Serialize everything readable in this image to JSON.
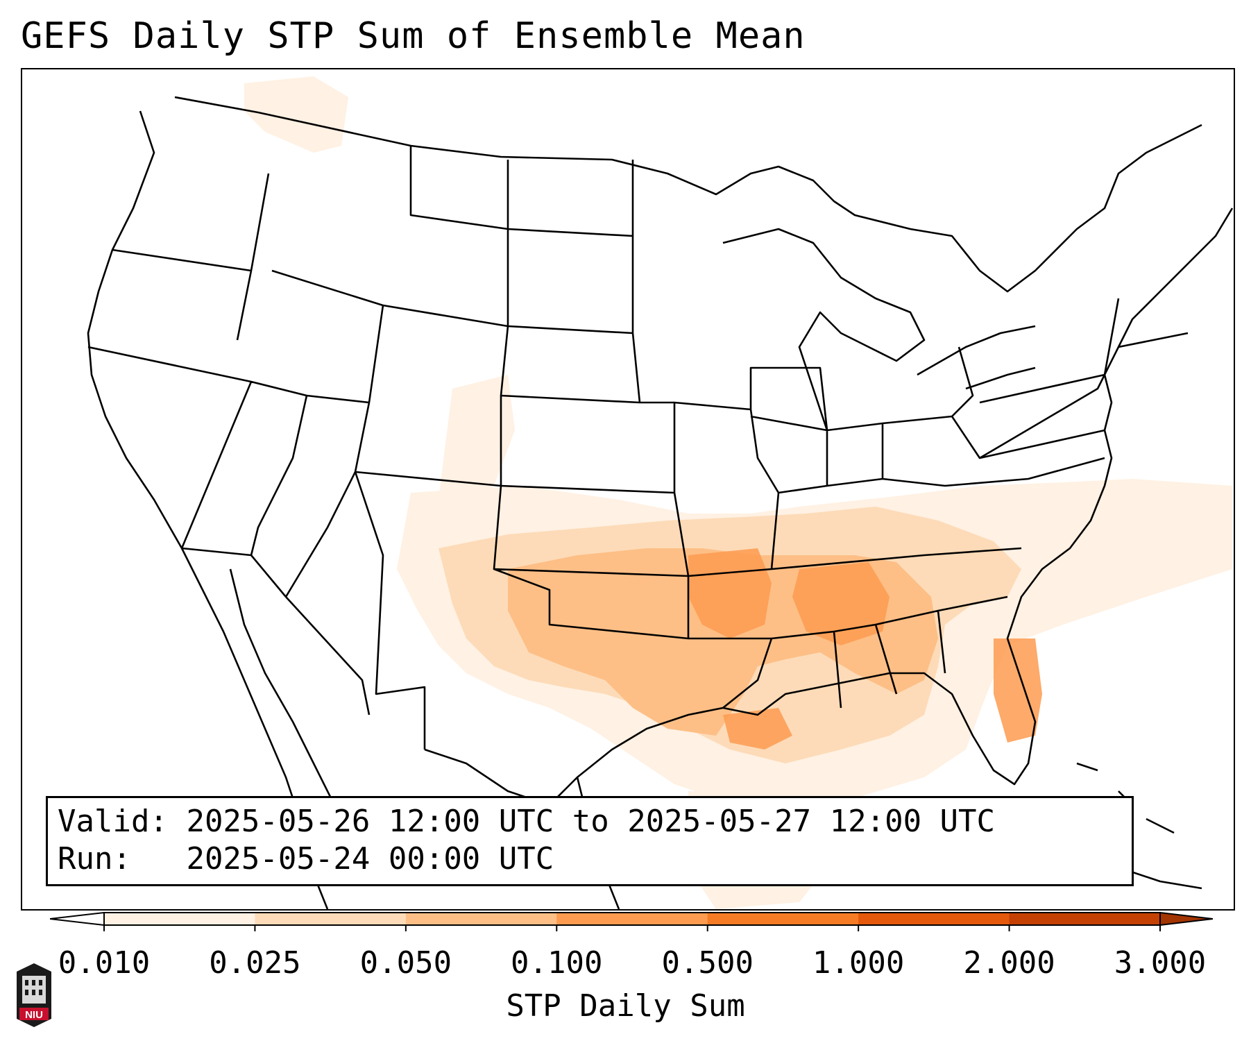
{
  "title": "GEFS Daily STP Sum of Ensemble Mean",
  "info": {
    "valid_label": "Valid:",
    "valid_value": "2025-05-26 12:00 UTC to 2025-05-27 12:00 UTC",
    "run_label": "Run:",
    "run_value": "2025-05-24 00:00 UTC"
  },
  "colorbar": {
    "label": "STP Daily Sum",
    "ticks": [
      "0.010",
      "0.025",
      "0.050",
      "0.100",
      "0.500",
      "1.000",
      "2.000",
      "3.000"
    ],
    "colors": [
      "#fff1e3",
      "#fddbb8",
      "#fdbf86",
      "#fd9b50",
      "#f57b25",
      "#e4590c",
      "#c44103"
    ],
    "under_color": "#ffffff",
    "over_color": "#a33502"
  },
  "logo": {
    "text": "NIU",
    "color": "#c8102e"
  },
  "stp_field": [
    {
      "region": "Southern Plains (OK/TX)",
      "level": 2
    },
    {
      "region": "Arkansas",
      "level": 3
    },
    {
      "region": "Lower Mississippi Valley / Alabama",
      "level": 3
    },
    {
      "region": "Georgia / Florida Atlantic coast",
      "level": 3
    },
    {
      "region": "Northern Gulf of Mexico",
      "level": 2
    },
    {
      "region": "Southeast Atlantic offshore",
      "level": 1
    },
    {
      "region": "High Plains (CO/NM)",
      "level": 1
    },
    {
      "region": "Pacific Northwest",
      "level": 0
    }
  ]
}
